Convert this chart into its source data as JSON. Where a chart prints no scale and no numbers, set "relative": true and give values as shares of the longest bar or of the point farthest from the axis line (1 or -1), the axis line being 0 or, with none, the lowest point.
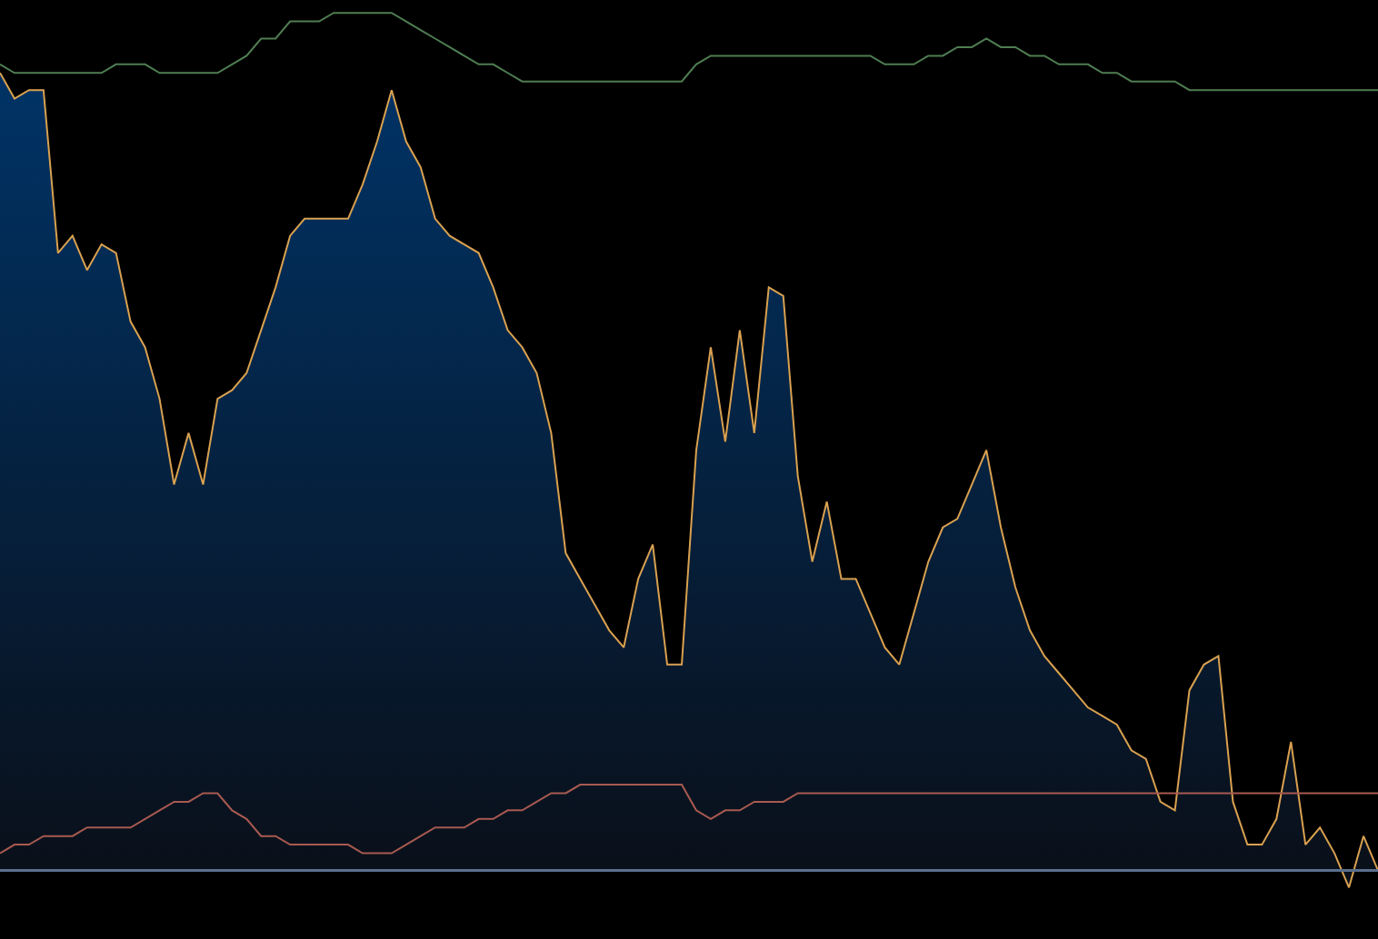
{
  "chart_data": {
    "type": "area",
    "relative": true,
    "ref_lines": [
      {
        "axis": "y",
        "value": 0,
        "color": "#5b6f8c"
      }
    ],
    "categories": [
      null,
      null,
      null,
      null,
      null,
      null,
      null,
      null,
      null,
      null,
      null,
      null,
      null,
      null,
      null,
      null,
      null,
      null,
      null,
      null,
      null,
      null,
      null,
      null,
      null,
      null,
      null,
      null,
      null,
      null,
      null,
      null,
      null,
      null,
      null,
      null,
      null,
      null,
      null,
      null,
      null,
      null,
      null,
      null,
      null,
      null,
      null,
      null,
      null,
      null,
      null,
      null,
      null,
      null,
      null,
      null,
      null,
      null,
      null,
      null,
      null,
      null,
      null,
      null,
      null,
      null,
      null,
      null,
      null,
      null,
      null,
      null,
      null,
      null,
      null,
      null,
      null,
      null,
      null,
      null,
      null,
      null,
      null,
      null,
      null,
      null,
      null,
      null,
      null,
      null,
      null,
      null,
      null,
      null,
      null,
      null
    ],
    "series": [
      {
        "color": "#d9a150",
        "values": [
          0.93,
          0.9,
          0.91,
          0.91,
          0.72,
          0.74,
          0.7,
          0.73,
          0.72,
          0.64,
          0.61,
          0.55,
          0.45,
          0.51,
          0.45,
          0.55,
          0.56,
          0.58,
          0.63,
          0.68,
          0.74,
          0.76,
          0.76,
          0.76,
          0.76,
          0.8,
          0.85,
          0.91,
          0.85,
          0.82,
          0.76,
          0.74,
          0.73,
          0.72,
          0.68,
          0.63,
          0.61,
          0.58,
          0.51,
          0.37,
          0.34,
          0.31,
          0.28,
          0.26,
          0.34,
          0.38,
          0.24,
          0.24,
          0.49,
          0.61,
          0.5,
          0.63,
          0.51,
          0.68,
          0.67,
          0.46,
          0.36,
          0.43,
          0.34,
          0.34,
          0.3,
          0.26,
          0.24,
          0.3,
          0.36,
          0.4,
          0.41,
          0.45,
          0.49,
          0.4,
          0.33,
          0.28,
          0.25,
          0.23,
          0.21,
          0.19,
          0.18,
          0.17,
          0.14,
          0.13,
          0.08,
          0.07,
          0.21,
          0.24,
          0.25,
          0.08,
          0.03,
          0.03,
          0.06,
          0.15,
          0.03,
          0.05,
          0.02,
          -0.02,
          0.04,
          0.0
        ]
      },
      {
        "type": "line",
        "color": "#4f7d52",
        "values": [
          0.94,
          0.93,
          0.93,
          0.93,
          0.93,
          0.93,
          0.93,
          0.93,
          0.94,
          0.94,
          0.94,
          0.93,
          0.93,
          0.93,
          0.93,
          0.93,
          0.94,
          0.95,
          0.97,
          0.97,
          0.99,
          0.99,
          0.99,
          1.0,
          1.0,
          1.0,
          1.0,
          1.0,
          0.99,
          0.98,
          0.97,
          0.96,
          0.95,
          0.94,
          0.94,
          0.93,
          0.92,
          0.92,
          0.92,
          0.92,
          0.92,
          0.92,
          0.92,
          0.92,
          0.92,
          0.92,
          0.92,
          0.92,
          0.94,
          0.95,
          0.95,
          0.95,
          0.95,
          0.95,
          0.95,
          0.95,
          0.95,
          0.95,
          0.95,
          0.95,
          0.95,
          0.94,
          0.94,
          0.94,
          0.95,
          0.95,
          0.96,
          0.96,
          0.97,
          0.96,
          0.96,
          0.95,
          0.95,
          0.94,
          0.94,
          0.94,
          0.93,
          0.93,
          0.92,
          0.92,
          0.92,
          0.92,
          0.91,
          0.91,
          0.91,
          0.91,
          0.91,
          0.91,
          0.91,
          0.91,
          0.91,
          0.91,
          0.91,
          0.91,
          0.91,
          0.91
        ]
      },
      {
        "type": "line",
        "color": "#a85a50",
        "values": [
          0.02,
          0.03,
          0.03,
          0.04,
          0.04,
          0.04,
          0.05,
          0.05,
          0.05,
          0.05,
          0.06,
          0.07,
          0.08,
          0.08,
          0.09,
          0.09,
          0.07,
          0.06,
          0.04,
          0.04,
          0.03,
          0.03,
          0.03,
          0.03,
          0.03,
          0.02,
          0.02,
          0.02,
          0.03,
          0.04,
          0.05,
          0.05,
          0.05,
          0.06,
          0.06,
          0.07,
          0.07,
          0.08,
          0.09,
          0.09,
          0.1,
          0.1,
          0.1,
          0.1,
          0.1,
          0.1,
          0.1,
          0.1,
          0.07,
          0.06,
          0.07,
          0.07,
          0.08,
          0.08,
          0.08,
          0.09,
          0.09,
          0.09,
          0.09,
          0.09,
          0.09,
          0.09,
          0.09,
          0.09,
          0.09,
          0.09,
          0.09,
          0.09,
          0.09,
          0.09,
          0.09,
          0.09,
          0.09,
          0.09,
          0.09,
          0.09,
          0.09,
          0.09,
          0.09,
          0.09,
          0.09,
          0.09,
          0.09,
          0.09,
          0.09,
          0.09,
          0.09,
          0.09,
          0.09,
          0.09,
          0.09,
          0.09,
          0.09,
          0.09,
          0.09,
          0.09
        ]
      }
    ]
  }
}
